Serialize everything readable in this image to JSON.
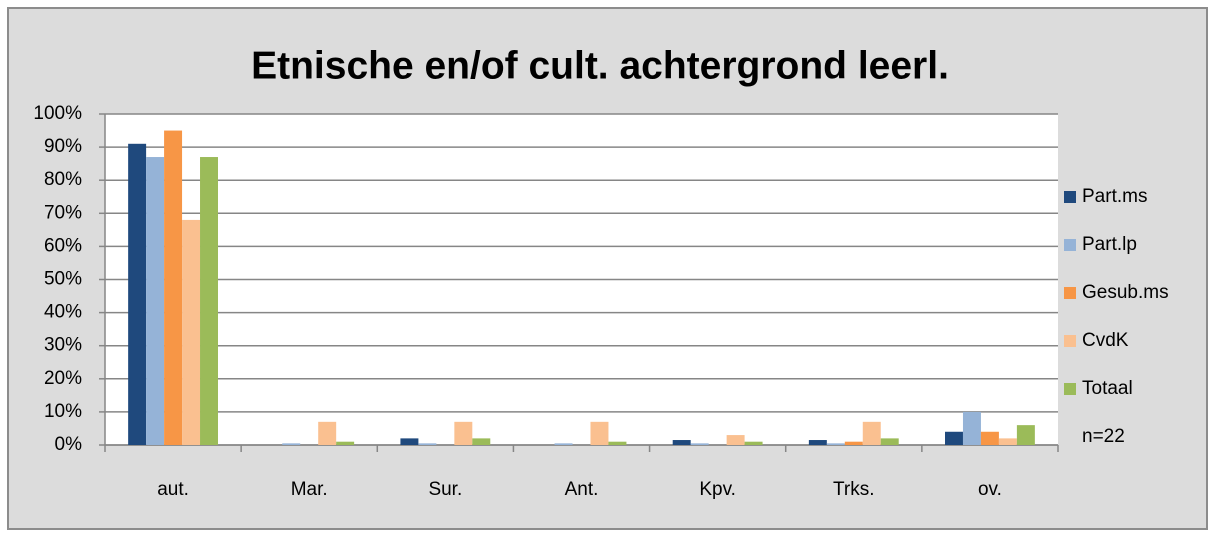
{
  "chart_data": {
    "type": "bar",
    "title": "Etnische en/of cult. achtergrond leerl.",
    "categories": [
      "aut.",
      "Mar.",
      "Sur.",
      "Ant.",
      "Kpv.",
      "Trks.",
      "ov."
    ],
    "series": [
      {
        "name": "Part.ms",
        "color": "#1f497d",
        "values": [
          91,
          0,
          2,
          0,
          1.5,
          1.5,
          4
        ]
      },
      {
        "name": "Part.lp",
        "color": "#95b3d7",
        "values": [
          87,
          0.5,
          0.5,
          0.5,
          0.5,
          0.5,
          10
        ]
      },
      {
        "name": "Gesub.ms",
        "color": "#f79646",
        "values": [
          95,
          0,
          0,
          0,
          0,
          1,
          4
        ]
      },
      {
        "name": "CvdK",
        "color": "#fac090",
        "values": [
          68,
          7,
          7,
          7,
          3,
          7,
          2
        ]
      },
      {
        "name": "Totaal",
        "color": "#9bbb59",
        "values": [
          87,
          1,
          2,
          1,
          1,
          2,
          6
        ]
      }
    ],
    "annotation": "n=22",
    "ylim": [
      0,
      100
    ],
    "yticks": [
      {
        "value": 0,
        "label": "0%"
      },
      {
        "value": 10,
        "label": "10%"
      },
      {
        "value": 20,
        "label": "20%"
      },
      {
        "value": 30,
        "label": "30%"
      },
      {
        "value": 40,
        "label": "40%"
      },
      {
        "value": 50,
        "label": "50%"
      },
      {
        "value": 60,
        "label": "60%"
      },
      {
        "value": 70,
        "label": "70%"
      },
      {
        "value": 80,
        "label": "80%"
      },
      {
        "value": 90,
        "label": "90%"
      },
      {
        "value": 100,
        "label": "100%"
      }
    ],
    "grid": true,
    "legend": "right"
  }
}
